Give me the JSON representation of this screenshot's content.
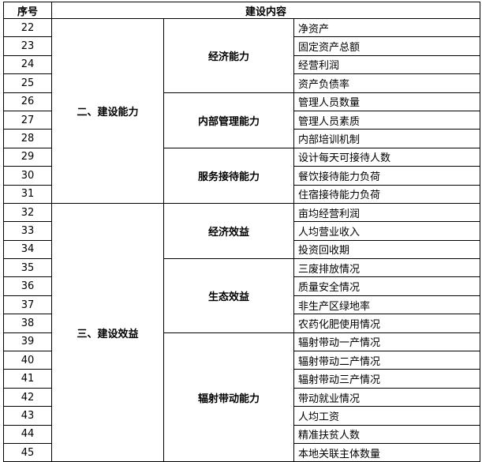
{
  "header": {
    "seq": "序号",
    "content": "建设内容"
  },
  "sections": [
    {
      "title": "二、建设能力",
      "groups": [
        {
          "title": "经济能力",
          "items": [
            [
              "22",
              "净资产"
            ],
            [
              "23",
              "固定资产总额"
            ],
            [
              "24",
              "经营利润"
            ],
            [
              "25",
              "资产负债率"
            ]
          ]
        },
        {
          "title": "内部管理能力",
          "items": [
            [
              "26",
              "管理人员数量"
            ],
            [
              "27",
              "管理人员素质"
            ],
            [
              "28",
              "内部培训机制"
            ]
          ]
        },
        {
          "title": "服务接待能力",
          "items": [
            [
              "29",
              "设计每天可接待人数"
            ],
            [
              "30",
              "餐饮接待能力负荷"
            ],
            [
              "31",
              "住宿接待能力负荷"
            ]
          ]
        }
      ]
    },
    {
      "title": "三、建设效益",
      "groups": [
        {
          "title": "经济效益",
          "items": [
            [
              "32",
              "亩均经营利润"
            ],
            [
              "33",
              "人均营业收入"
            ],
            [
              "34",
              "投资回收期"
            ]
          ]
        },
        {
          "title": "生态效益",
          "items": [
            [
              "35",
              "三废排放情况"
            ],
            [
              "36",
              "质量安全情况"
            ],
            [
              "37",
              "非生产区绿地率"
            ],
            [
              "38",
              "农药化肥使用情况"
            ]
          ]
        },
        {
          "title": "辐射带动能力",
          "items": [
            [
              "39",
              "辐射带动一产情况"
            ],
            [
              "40",
              "辐射带动二产情况"
            ],
            [
              "41",
              "辐射带动三产情况"
            ],
            [
              "42",
              "带动就业情况"
            ],
            [
              "43",
              "人均工资"
            ],
            [
              "44",
              "精准扶贫人数"
            ],
            [
              "45",
              "本地关联主体数量"
            ]
          ]
        }
      ]
    }
  ]
}
